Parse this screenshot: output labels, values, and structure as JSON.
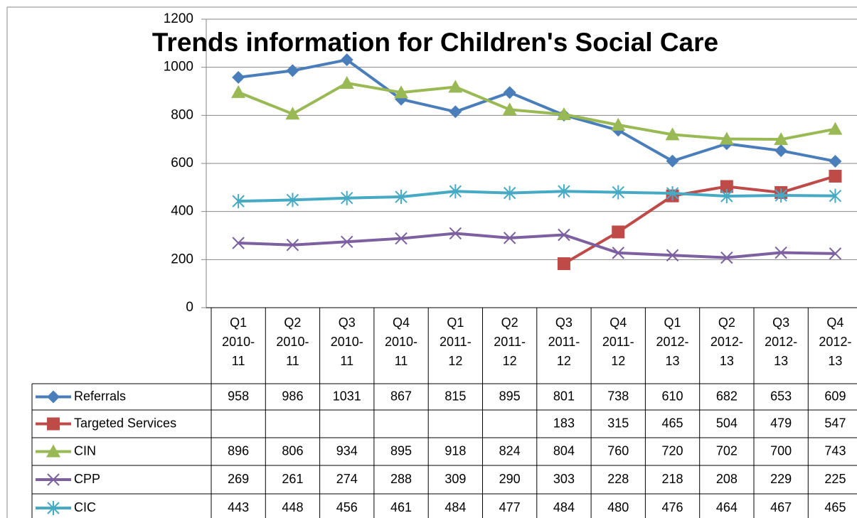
{
  "chart_data": {
    "type": "line",
    "title": "Trends information for Children's Social Care",
    "categories": [
      "Q1 2010-11",
      "Q2 2010-11",
      "Q3 2010-11",
      "Q4 2010-11",
      "Q1 2011-12",
      "Q2 2011-12",
      "Q3 2011-12",
      "Q4 2011-12",
      "Q1 2012-13",
      "Q2 2012-13",
      "Q3 2012-13",
      "Q4 2012-13"
    ],
    "series": [
      {
        "name": "Referrals",
        "color": "#4a7ebb",
        "marker": "diamond",
        "values": [
          958,
          986,
          1031,
          867,
          815,
          895,
          801,
          738,
          610,
          682,
          653,
          609
        ]
      },
      {
        "name": "Targeted Services",
        "color": "#be4b48",
        "marker": "square",
        "values": [
          null,
          null,
          null,
          null,
          null,
          null,
          183,
          315,
          465,
          504,
          479,
          547
        ]
      },
      {
        "name": "CIN",
        "color": "#98b954",
        "marker": "triangle",
        "values": [
          896,
          806,
          934,
          895,
          918,
          824,
          804,
          760,
          720,
          702,
          700,
          743
        ]
      },
      {
        "name": "CPP",
        "color": "#7d60a0",
        "marker": "x",
        "values": [
          269,
          261,
          274,
          288,
          309,
          290,
          303,
          228,
          218,
          208,
          229,
          225
        ]
      },
      {
        "name": "CIC",
        "color": "#46aac5",
        "marker": "star",
        "values": [
          443,
          448,
          456,
          461,
          484,
          477,
          484,
          480,
          476,
          464,
          467,
          465
        ]
      }
    ],
    "ylim": [
      0,
      1200
    ],
    "yticks": [
      0,
      200,
      400,
      600,
      800,
      1000,
      1200
    ],
    "grid": true,
    "data_table": true
  }
}
